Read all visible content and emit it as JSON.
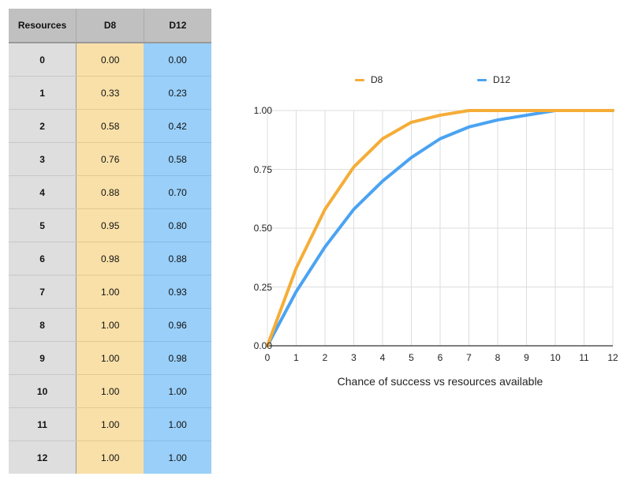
{
  "table": {
    "headers": [
      "Resources",
      "D8",
      "D12"
    ],
    "rows": [
      [
        "0",
        "0.00",
        "0.00"
      ],
      [
        "1",
        "0.33",
        "0.23"
      ],
      [
        "2",
        "0.58",
        "0.42"
      ],
      [
        "3",
        "0.76",
        "0.58"
      ],
      [
        "4",
        "0.88",
        "0.70"
      ],
      [
        "5",
        "0.95",
        "0.80"
      ],
      [
        "6",
        "0.98",
        "0.88"
      ],
      [
        "7",
        "1.00",
        "0.93"
      ],
      [
        "8",
        "1.00",
        "0.96"
      ],
      [
        "9",
        "1.00",
        "0.98"
      ],
      [
        "10",
        "1.00",
        "1.00"
      ],
      [
        "11",
        "1.00",
        "1.00"
      ],
      [
        "12",
        "1.00",
        "1.00"
      ]
    ]
  },
  "colors": {
    "d8": "#f5ad37",
    "d12": "#4aa3f2",
    "grid": "#dddddd",
    "axis": "#555555"
  },
  "chart_data": {
    "type": "line",
    "title": "",
    "xlabel": "Chance of success vs resources available",
    "ylabel": "",
    "x": [
      0,
      1,
      2,
      3,
      4,
      5,
      6,
      7,
      8,
      9,
      10,
      11,
      12
    ],
    "series": [
      {
        "name": "D8",
        "color": "#f5ad37",
        "values": [
          0.0,
          0.33,
          0.58,
          0.76,
          0.88,
          0.95,
          0.98,
          1.0,
          1.0,
          1.0,
          1.0,
          1.0,
          1.0
        ]
      },
      {
        "name": "D12",
        "color": "#4aa3f2",
        "values": [
          0.0,
          0.23,
          0.42,
          0.58,
          0.7,
          0.8,
          0.88,
          0.93,
          0.96,
          0.98,
          1.0,
          1.0,
          1.0
        ]
      }
    ],
    "xlim": [
      0,
      12
    ],
    "ylim": [
      0,
      1
    ],
    "yticks": [
      "0.00",
      "0.25",
      "0.50",
      "0.75",
      "1.00"
    ],
    "xticks": [
      "0",
      "1",
      "2",
      "3",
      "4",
      "5",
      "6",
      "7",
      "8",
      "9",
      "10",
      "11",
      "12"
    ],
    "legend": [
      "D8",
      "D12"
    ],
    "legend_position": "top",
    "grid": true
  }
}
